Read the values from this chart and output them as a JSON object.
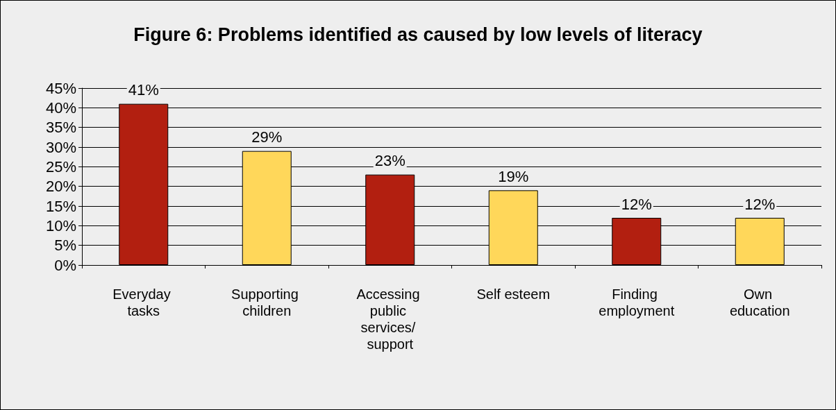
{
  "chart_data": {
    "type": "bar",
    "title": "Figure 6: Problems identified as caused by low levels of literacy",
    "categories": [
      "Everyday tasks",
      "Supporting children",
      "Accessing public services/ support",
      "Self esteem",
      "Finding employment",
      "Own education"
    ],
    "values": [
      41,
      29,
      23,
      19,
      12,
      12
    ],
    "value_labels": [
      "41%",
      "29%",
      "23%",
      "19%",
      "12%",
      "12%"
    ],
    "colors": [
      "#b21f10",
      "#ffd75a",
      "#b21f10",
      "#ffd75a",
      "#b21f10",
      "#ffd75a"
    ],
    "ylim": [
      0,
      45
    ],
    "yticks": [
      {
        "value": 0,
        "label": "0%"
      },
      {
        "value": 5,
        "label": "5%"
      },
      {
        "value": 10,
        "label": "10%"
      },
      {
        "value": 15,
        "label": "15%"
      },
      {
        "value": 20,
        "label": "20%"
      },
      {
        "value": 25,
        "label": "25%"
      },
      {
        "value": 30,
        "label": "30%"
      },
      {
        "value": 35,
        "label": "35%"
      },
      {
        "value": 40,
        "label": "40%"
      },
      {
        "value": 45,
        "label": "45%"
      }
    ],
    "grid": "y"
  }
}
